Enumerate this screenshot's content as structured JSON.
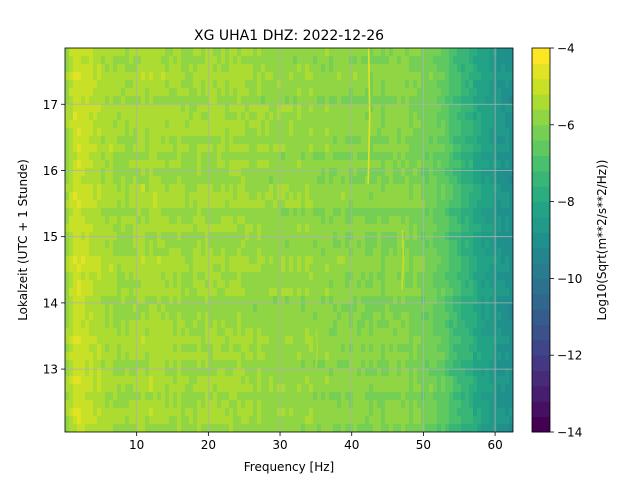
{
  "chart_data": {
    "type": "heatmap",
    "title": "XG UHA1  DHZ: 2022-12-26",
    "xlabel": "Frequency [Hz]",
    "ylabel": "Lokalzeit (UTC + 1 Stunde)",
    "xlim": [
      0,
      62.5
    ],
    "ylim": [
      17.85,
      12.05
    ],
    "x_ticks": [
      10,
      20,
      30,
      40,
      50,
      60
    ],
    "x_tick_labels": [
      "10",
      "20",
      "30",
      "40",
      "50",
      "60"
    ],
    "y_ticks": [
      13,
      14,
      15,
      16,
      17
    ],
    "y_tick_labels": [
      "13",
      "14",
      "15",
      "16",
      "17"
    ],
    "grid": true,
    "colormap": "viridis",
    "colorbar": {
      "label": "Log10(Sqrt(m**2/s**2/Hz))",
      "range": [
        -14,
        -4
      ],
      "ticks": [
        -14,
        -12,
        -10,
        -8,
        -6,
        -4
      ],
      "tick_labels": [
        "−14",
        "−12",
        "−10",
        "−8",
        "−6",
        "−4"
      ],
      "levels": 25
    },
    "z_profile_by_frequency": {
      "frequency_hz": [
        0,
        0.8,
        2,
        3,
        5,
        8,
        10,
        15,
        20,
        25,
        30,
        35,
        40,
        43,
        45,
        48,
        50,
        52,
        53,
        54,
        55,
        56,
        57,
        58,
        59,
        60,
        61,
        62.5
      ],
      "log10_amplitude": [
        -5.9,
        -5.3,
        -4.9,
        -5.2,
        -5.4,
        -5.6,
        -5.5,
        -5.6,
        -5.6,
        -5.7,
        -5.7,
        -5.8,
        -5.9,
        -6.0,
        -6.0,
        -6.0,
        -6.2,
        -6.5,
        -6.7,
        -7.0,
        -7.3,
        -7.6,
        -7.9,
        -8.2,
        -8.4,
        -8.6,
        -8.8,
        -9.1
      ]
    },
    "features": [
      {
        "frequency_hz": 42.3,
        "time_start": 15.8,
        "time_end": 17.85,
        "log10_amplitude": -4.8
      },
      {
        "frequency_hz": 35,
        "time_start": 13.0,
        "time_end": 13.6,
        "log10_amplitude": -5.3
      },
      {
        "frequency_hz": 47,
        "time_start": 14.2,
        "time_end": 15.1,
        "log10_amplitude": -5.2
      }
    ]
  }
}
